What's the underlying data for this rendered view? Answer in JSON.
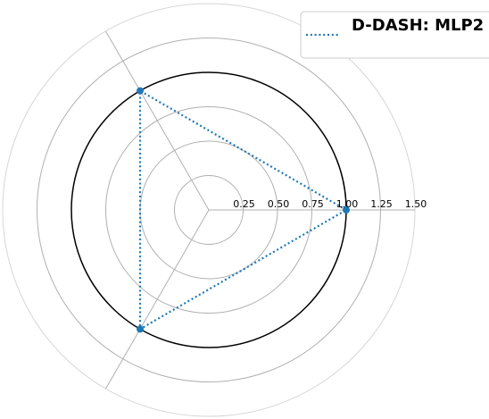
{
  "chart_data": {
    "type": "radar",
    "title": "",
    "r_ticks": [
      0.25,
      0.5,
      0.75,
      1.0,
      1.25,
      1.5
    ],
    "r_tick_labels": [
      "0.25",
      "0.50",
      "0.75",
      "1.00",
      "1.25",
      "1.50"
    ],
    "r_lim": [
      0,
      1.5
    ],
    "reference_circle": 1.0,
    "axis_angles_deg": [
      0,
      120,
      240
    ],
    "grid": true,
    "legend_position": "top-right",
    "series": [
      {
        "name": "D-DASH: MLP2",
        "values": [
          1.0,
          1.0,
          1.0
        ],
        "color": "#1f77b4",
        "line_style": "dotted",
        "marker": "circle"
      }
    ]
  }
}
